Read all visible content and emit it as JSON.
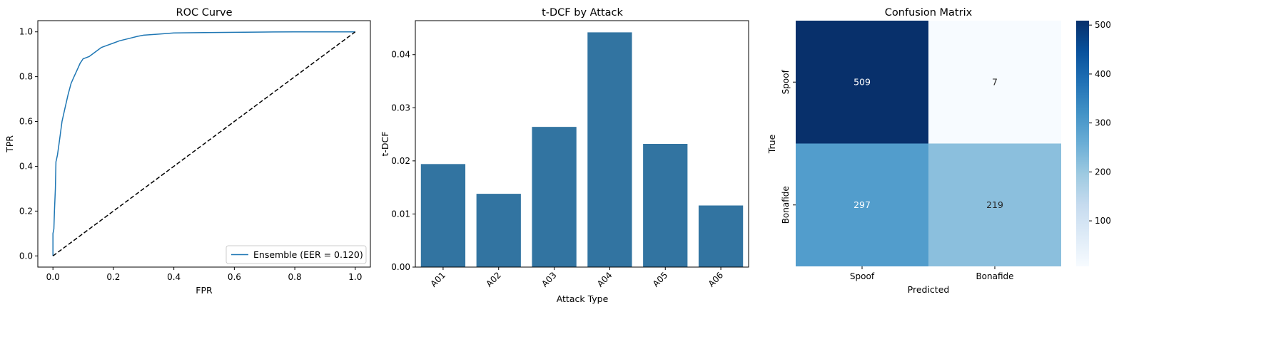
{
  "chart_data": [
    {
      "type": "line",
      "title": "ROC Curve",
      "xlabel": "FPR",
      "ylabel": "TPR",
      "xlim": [
        -0.05,
        1.05
      ],
      "ylim": [
        -0.05,
        1.05
      ],
      "xticks": [
        "0.0",
        "0.2",
        "0.4",
        "0.6",
        "0.8",
        "1.0"
      ],
      "yticks": [
        "0.0",
        "0.2",
        "0.4",
        "0.6",
        "0.8",
        "1.0"
      ],
      "legend_position": "lower-right",
      "series": [
        {
          "name": "Ensemble (EER = 0.120)",
          "color": "#1f77b4",
          "x": [
            0.0,
            0.0,
            0.003,
            0.005,
            0.008,
            0.01,
            0.015,
            0.02,
            0.025,
            0.03,
            0.035,
            0.04,
            0.05,
            0.06,
            0.07,
            0.08,
            0.09,
            0.1,
            0.11,
            0.12,
            0.14,
            0.16,
            0.18,
            0.2,
            0.22,
            0.25,
            0.28,
            0.3,
            0.35,
            0.4,
            0.5,
            0.6,
            0.7,
            0.8,
            0.9,
            1.0
          ],
          "y": [
            0.0,
            0.1,
            0.12,
            0.2,
            0.3,
            0.42,
            0.45,
            0.5,
            0.55,
            0.6,
            0.63,
            0.66,
            0.72,
            0.77,
            0.8,
            0.83,
            0.86,
            0.88,
            0.885,
            0.89,
            0.91,
            0.93,
            0.94,
            0.95,
            0.96,
            0.97,
            0.98,
            0.985,
            0.99,
            0.995,
            0.997,
            0.998,
            0.999,
            1.0,
            1.0,
            1.0
          ]
        },
        {
          "name": "",
          "color": "#000000",
          "style": "dashed",
          "x": [
            0,
            1
          ],
          "y": [
            0,
            1
          ]
        }
      ]
    },
    {
      "type": "bar",
      "title": "t-DCF by Attack",
      "xlabel": "Attack Type",
      "ylabel": "t-DCF",
      "categories": [
        "A01",
        "A02",
        "A03",
        "A04",
        "A05",
        "A06"
      ],
      "values": [
        0.0194,
        0.0138,
        0.0264,
        0.0442,
        0.0232,
        0.0116
      ],
      "ylim": [
        0,
        0.0464
      ],
      "yticks": [
        "0.00",
        "0.01",
        "0.02",
        "0.03",
        "0.04"
      ],
      "color": "#3274a1"
    },
    {
      "type": "heatmap",
      "title": "Confusion Matrix",
      "xlabel": "Predicted",
      "ylabel": "True",
      "x_categories": [
        "Spoof",
        "Bonafide"
      ],
      "y_categories": [
        "Spoof",
        "Bonafide"
      ],
      "values": [
        [
          "509",
          "7"
        ],
        [
          "297",
          "219"
        ]
      ],
      "colorbar_ticks": [
        "100",
        "200",
        "300",
        "400",
        "500"
      ],
      "colormap": "Blues",
      "range": [
        7,
        509
      ]
    }
  ]
}
